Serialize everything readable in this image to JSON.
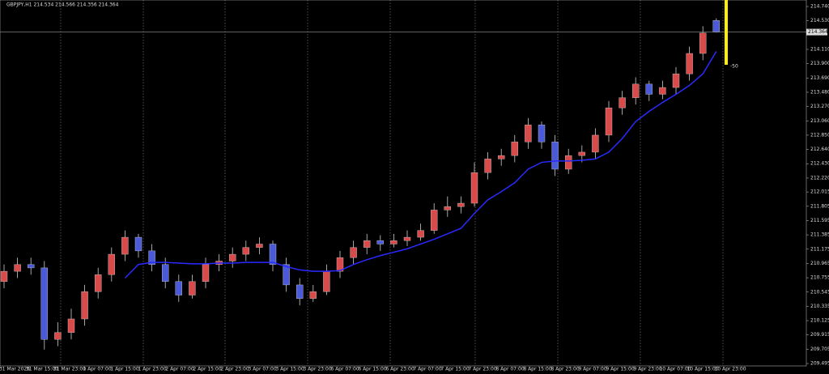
{
  "chart_data": {
    "type": "candlestick",
    "title": "GBPJPY,H1  214.534 214.566 214.356 214.364",
    "current_price": {
      "value": 214.364,
      "label": "214.364"
    },
    "annotation": "-50",
    "x_labels": [
      "31 Mar 2026",
      "31 Mar 15:00",
      "31 Mar 23:00",
      "1 Apr 07:00",
      "1 Apr 15:00",
      "1 Apr 23:00",
      "2 Apr 07:00",
      "2 Apr 15:00",
      "2 Apr 23:00",
      "3 Apr 07:00",
      "3 Apr 15:00",
      "3 Apr 23:00",
      "6 Apr 07:00",
      "6 Apr 15:00",
      "6 Apr 23:00",
      "7 Apr 07:00",
      "7 Apr 15:00",
      "7 Apr 23:00",
      "8 Apr 07:00",
      "8 Apr 15:00",
      "8 Apr 23:00",
      "9 Apr 07:00",
      "9 Apr 15:00",
      "9 Apr 23:00",
      "10 Apr 07:00",
      "10 Apr 15:00",
      "10 Apr 23:00"
    ],
    "ylim": [
      209.46,
      214.835
    ],
    "yticks": [
      {
        "value": 214.74,
        "label": "214.740"
      },
      {
        "value": 214.53,
        "label": "214.530"
      },
      {
        "value": 214.11,
        "label": "214.110"
      },
      {
        "value": 213.9,
        "label": "213.900"
      },
      {
        "value": 213.69,
        "label": "213.690"
      },
      {
        "value": 213.48,
        "label": "213.480"
      },
      {
        "value": 213.27,
        "label": "213.270"
      },
      {
        "value": 213.06,
        "label": "213.060"
      },
      {
        "value": 212.85,
        "label": "212.850"
      },
      {
        "value": 212.64,
        "label": "212.640"
      },
      {
        "value": 212.43,
        "label": "212.430"
      },
      {
        "value": 212.22,
        "label": "212.220"
      },
      {
        "value": 212.015,
        "label": "212.015"
      },
      {
        "value": 211.805,
        "label": "211.805"
      },
      {
        "value": 211.595,
        "label": "211.595"
      },
      {
        "value": 211.385,
        "label": "211.385"
      },
      {
        "value": 211.175,
        "label": "211.175"
      },
      {
        "value": 210.965,
        "label": "210.965"
      },
      {
        "value": 210.755,
        "label": "210.755"
      },
      {
        "value": 210.545,
        "label": "210.545"
      },
      {
        "value": 210.335,
        "label": "210.335"
      },
      {
        "value": 210.125,
        "label": "210.125"
      },
      {
        "value": 209.915,
        "label": "209.915"
      },
      {
        "value": 209.705,
        "label": "209.705"
      },
      {
        "value": 209.495,
        "label": "209.495"
      }
    ],
    "up_color": "#d94a4a",
    "down_color": "#4a5ad9",
    "close": [
      210.85,
      210.95,
      210.9,
      209.85,
      209.95,
      210.15,
      210.55,
      210.8,
      211.1,
      211.35,
      211.15,
      210.95,
      210.7,
      210.5,
      210.7,
      210.95,
      211.0,
      211.1,
      211.2,
      211.25,
      210.95,
      210.65,
      210.45,
      210.55,
      210.85,
      211.05,
      211.2,
      211.3,
      211.25,
      211.3,
      211.35,
      211.45,
      211.75,
      211.8,
      211.85,
      212.3,
      212.5,
      212.55,
      212.75,
      213.0,
      212.75,
      212.35,
      212.55,
      212.6,
      212.85,
      213.25,
      213.4,
      213.6,
      213.45,
      213.55,
      213.75,
      214.05,
      214.35,
      214.364
    ],
    "open": [
      210.7,
      210.85,
      210.95,
      210.9,
      209.85,
      209.95,
      210.15,
      210.55,
      210.8,
      211.1,
      211.35,
      211.15,
      210.95,
      210.7,
      210.5,
      210.7,
      210.95,
      211.0,
      211.1,
      211.2,
      211.25,
      210.95,
      210.65,
      210.45,
      210.55,
      210.85,
      211.05,
      211.2,
      211.3,
      211.25,
      211.3,
      211.35,
      211.45,
      211.75,
      211.8,
      211.85,
      212.3,
      212.5,
      212.55,
      212.75,
      213.0,
      212.75,
      212.35,
      212.55,
      212.6,
      212.85,
      213.25,
      213.4,
      213.6,
      213.45,
      213.55,
      213.75,
      214.05,
      214.534
    ],
    "high": [
      210.95,
      211.05,
      211.05,
      211.0,
      210.1,
      210.3,
      210.65,
      210.9,
      211.2,
      211.45,
      211.4,
      211.25,
      211.05,
      210.8,
      210.8,
      211.05,
      211.1,
      211.2,
      211.3,
      211.35,
      211.3,
      211.05,
      210.75,
      210.65,
      210.95,
      211.15,
      211.3,
      211.4,
      211.38,
      211.4,
      211.45,
      211.55,
      211.85,
      211.95,
      211.95,
      212.45,
      212.6,
      212.65,
      212.85,
      213.1,
      213.05,
      212.85,
      212.65,
      212.7,
      212.95,
      213.35,
      213.5,
      213.7,
      213.65,
      213.65,
      213.85,
      214.15,
      214.45,
      214.566
    ],
    "low": [
      210.6,
      210.75,
      210.8,
      209.7,
      209.75,
      209.85,
      210.05,
      210.45,
      210.7,
      211.0,
      211.05,
      210.85,
      210.6,
      210.4,
      210.45,
      210.6,
      210.85,
      210.9,
      211.0,
      211.1,
      210.85,
      210.55,
      210.35,
      210.4,
      210.5,
      210.75,
      210.95,
      211.1,
      211.15,
      211.2,
      211.22,
      211.3,
      211.4,
      211.65,
      211.7,
      211.8,
      212.2,
      212.4,
      212.45,
      212.65,
      212.65,
      212.25,
      212.28,
      212.45,
      212.5,
      212.75,
      213.15,
      213.3,
      213.35,
      213.38,
      213.45,
      213.65,
      213.95,
      214.356
    ],
    "series": [
      {
        "name": "MA",
        "color": "#2a2aff",
        "values": [
          null,
          null,
          null,
          null,
          null,
          null,
          null,
          null,
          null,
          210.75,
          210.95,
          210.98,
          210.98,
          210.97,
          210.96,
          210.96,
          210.97,
          210.97,
          210.98,
          210.98,
          210.98,
          210.92,
          210.87,
          210.85,
          210.85,
          210.86,
          210.95,
          211.02,
          211.08,
          211.13,
          211.18,
          211.25,
          211.32,
          211.4,
          211.48,
          211.7,
          211.9,
          212.02,
          212.15,
          212.35,
          212.45,
          212.47,
          212.47,
          212.48,
          212.5,
          212.6,
          212.8,
          213.05,
          213.2,
          213.33,
          213.45,
          213.58,
          213.75,
          214.08
        ]
      }
    ]
  }
}
